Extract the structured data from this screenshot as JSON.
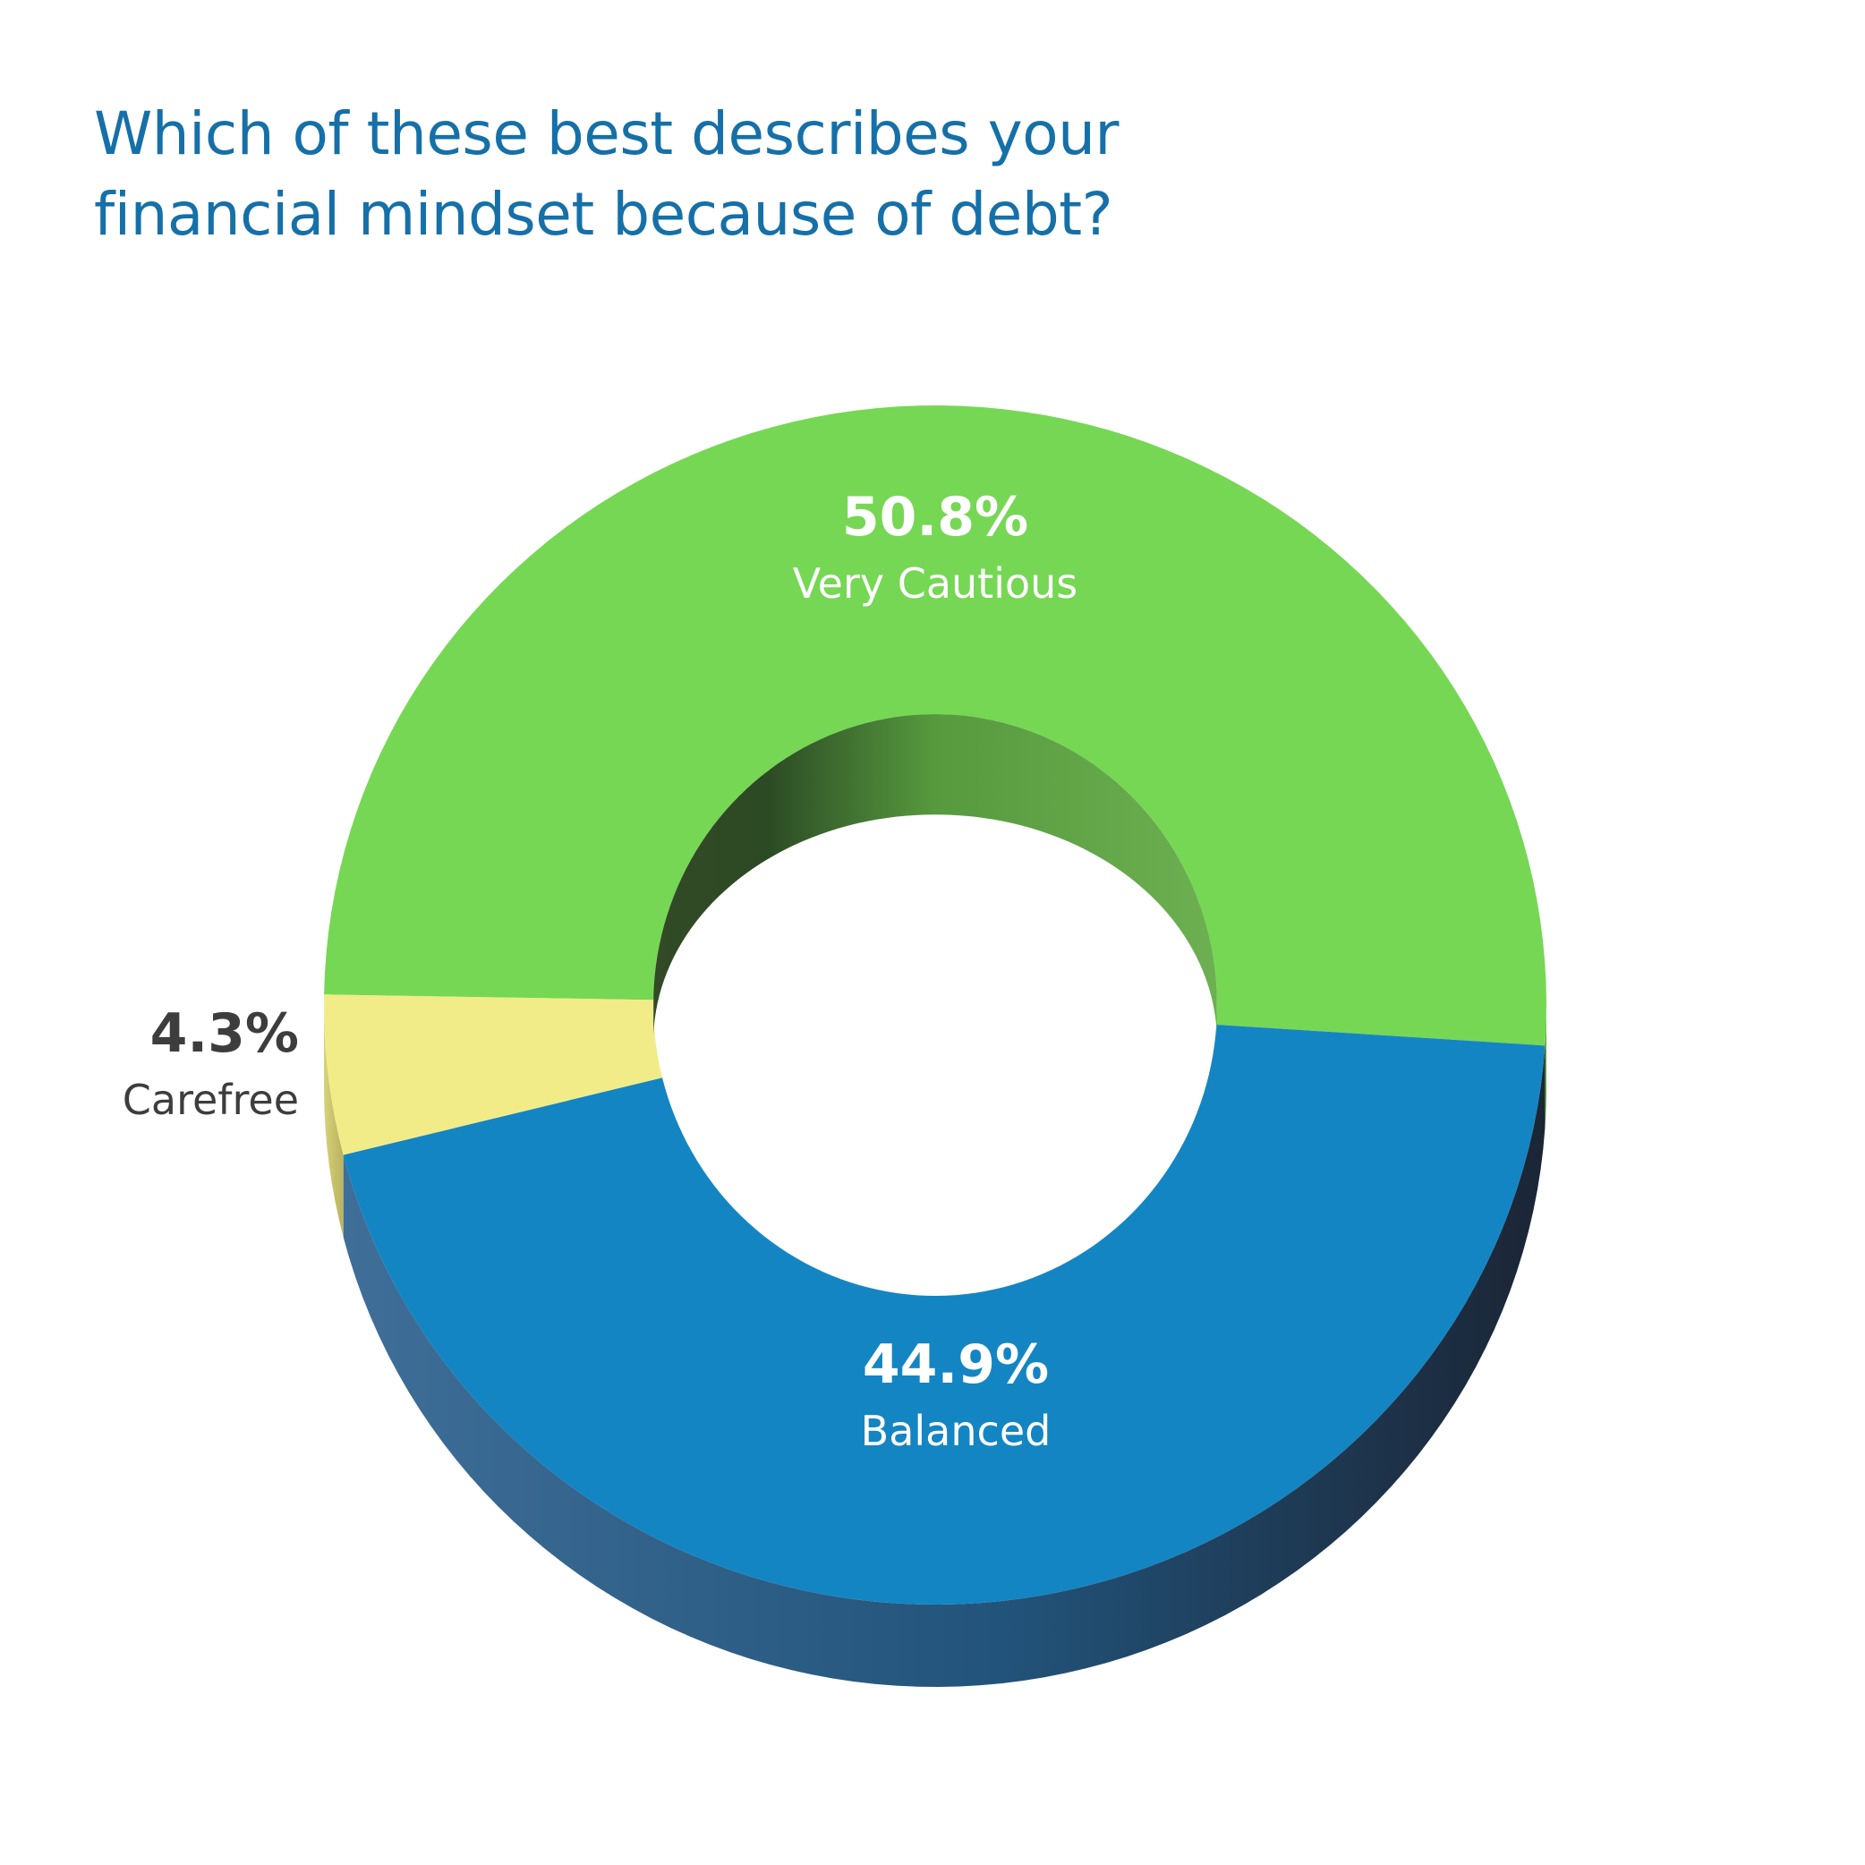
{
  "title": {
    "line1": "Which of these best describes your",
    "line2": "financial mindset because of debt?"
  },
  "colors": {
    "title": "#1670a8",
    "label_light": "#ffffff",
    "label_dark": "#3d3d3d"
  },
  "chart_data": {
    "type": "pie",
    "style": "3d-donut",
    "title": "Which of these best describes your financial mindset because of debt?",
    "slices": [
      {
        "label": "Very Cautious",
        "value": 50.8,
        "display": "50.8%",
        "color": "#76d754",
        "label_color": "#ffffff"
      },
      {
        "label": "Balanced",
        "value": 44.9,
        "display": "44.9%",
        "color": "#1485c3",
        "label_color": "#ffffff"
      },
      {
        "label": "Carefree",
        "value": 4.3,
        "display": "4.3%",
        "color": "#f1ec87",
        "label_color": "#3d3d3d"
      }
    ],
    "legend": "none"
  }
}
